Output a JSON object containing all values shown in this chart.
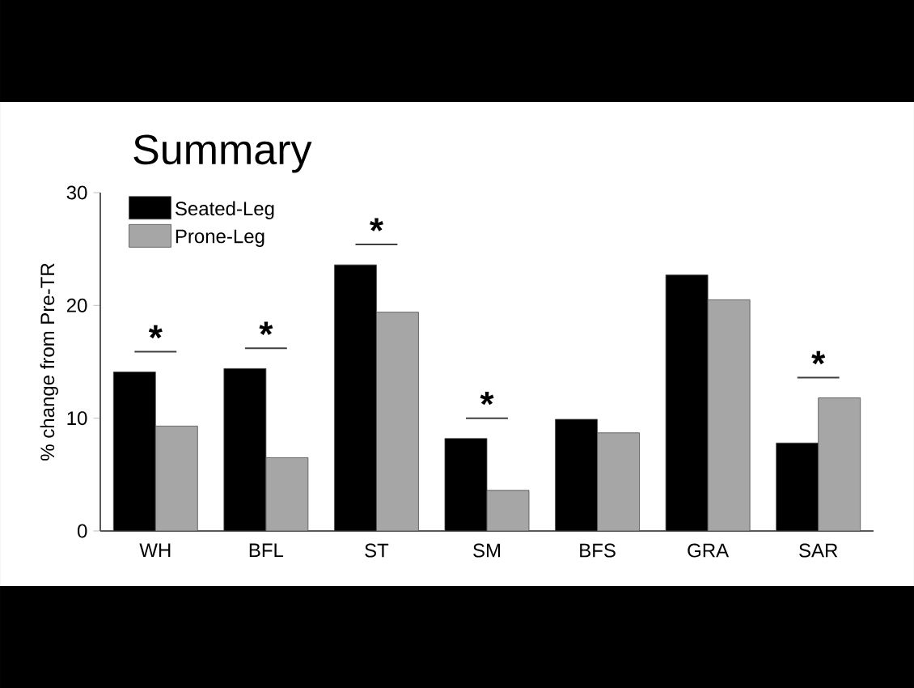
{
  "chart_data": {
    "type": "bar",
    "title": "Summary",
    "ylabel": "% change from Pre-TR",
    "categories": [
      "WH",
      "BFL",
      "ST",
      "SM",
      "BFS",
      "GRA",
      "SAR"
    ],
    "series": [
      {
        "name": "Seated-Leg",
        "color": "#000000",
        "values": [
          14.1,
          14.4,
          23.6,
          8.2,
          9.9,
          22.7,
          7.8
        ]
      },
      {
        "name": "Prone-Leg",
        "color": "#a6a6a6",
        "values": [
          9.3,
          6.5,
          19.4,
          3.6,
          8.7,
          20.5,
          11.8
        ]
      }
    ],
    "ylim": [
      0,
      30
    ],
    "yticks": [
      0,
      10,
      20,
      30
    ],
    "legend": "top left",
    "grid": false,
    "annotations": [
      "*",
      "*",
      "*",
      "*",
      "*"
    ]
  }
}
